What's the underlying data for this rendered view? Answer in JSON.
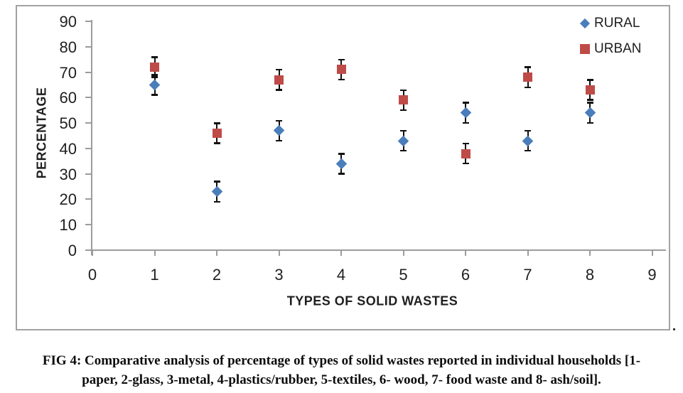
{
  "chart_data": {
    "type": "scatter",
    "title": "",
    "xlabel": "TYPES OF SOLID WASTES",
    "ylabel": "PERCENTAGE",
    "xlim": [
      0,
      9
    ],
    "ylim": [
      0,
      90
    ],
    "x_ticks": [
      0,
      1,
      2,
      3,
      4,
      5,
      6,
      7,
      8,
      9
    ],
    "y_ticks": [
      0,
      10,
      20,
      30,
      40,
      50,
      60,
      70,
      80,
      90
    ],
    "grid": false,
    "legend_position": "top-right",
    "x": [
      1,
      2,
      3,
      4,
      5,
      6,
      7,
      8
    ],
    "series": [
      {
        "name": "RURAL",
        "marker": "diamond",
        "color": "#4a7ebb",
        "values": [
          65,
          23,
          47,
          34,
          43,
          54,
          43,
          54
        ],
        "error": 4
      },
      {
        "name": "URBAN",
        "marker": "square",
        "color": "#be4b48",
        "values": [
          72,
          46,
          67,
          71,
          59,
          38,
          68,
          63
        ],
        "error": 4
      }
    ],
    "error_bar_color": "#111111"
  },
  "colors": {
    "rural": "#4a7ebb",
    "urban": "#be4b48",
    "axis": "#9c9c9c",
    "frame_border": "#a2a2a2",
    "text": "#1f1f1f"
  },
  "trailing_period": ".",
  "caption": {
    "line1": "FIG 4: Comparative analysis of percentage of types of solid wastes reported in individual households [1-",
    "line2": "paper, 2-glass, 3-metal, 4-plastics/rubber, 5-textiles, 6- wood, 7- food waste and 8- ash/soil]."
  }
}
